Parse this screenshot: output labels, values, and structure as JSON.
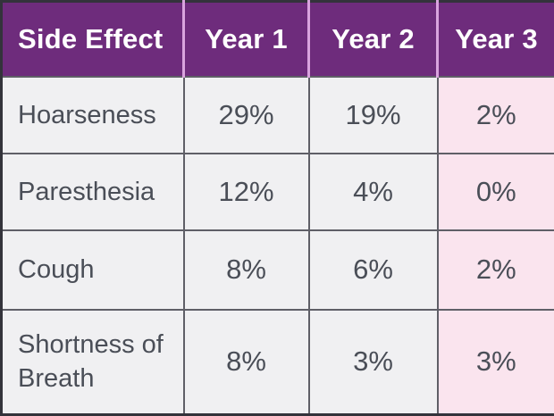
{
  "chart_data": {
    "type": "table",
    "columns": [
      "Side Effect",
      "Year 1",
      "Year 2",
      "Year 3"
    ],
    "rows": [
      [
        "Hoarseness",
        "29%",
        "19%",
        "2%"
      ],
      [
        "Paresthesia",
        "12%",
        "4%",
        "0%"
      ],
      [
        "Cough",
        "8%",
        "6%",
        "2%"
      ],
      [
        "Shortness of Breath",
        "8%",
        "3%",
        "3%"
      ]
    ],
    "values_percent": [
      [
        29,
        19,
        2
      ],
      [
        12,
        4,
        0
      ],
      [
        8,
        6,
        2
      ],
      [
        8,
        3,
        3
      ]
    ],
    "layout_hints": {
      "highlight_column": "Year 3",
      "first_column_align": "left",
      "value_columns_align": "center"
    }
  },
  "colors": {
    "header_bg": "#6E2C7C",
    "header_text": "#FFFFFF",
    "header_divider": "#D9A4DE",
    "cell_bg": "#F0F0F2",
    "highlight_bg": "#FAE4EE",
    "grid_border": "#5F5F67",
    "outer_border": "#33333B",
    "cell_text": "#4A4E57"
  }
}
